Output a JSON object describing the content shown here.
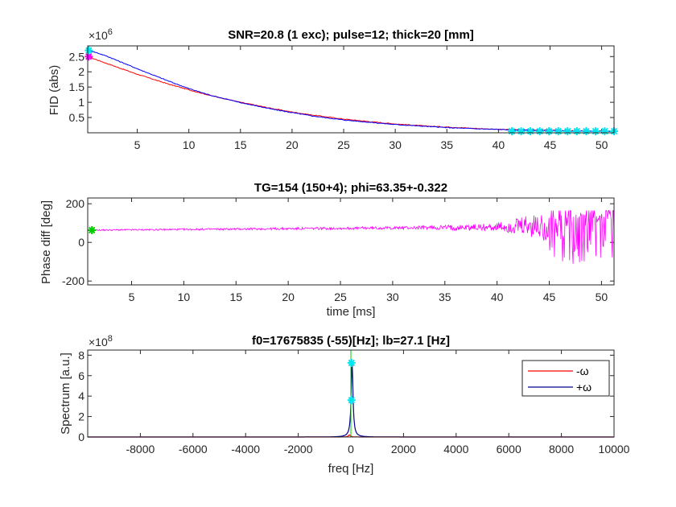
{
  "chart_data": [
    {
      "type": "line",
      "title": "SNR=20.8 (1 exc); pulse=12; thick=20 [mm]",
      "xlabel": "",
      "ylabel": "FID (abs)",
      "exponent_label": "×10",
      "exponent_power": "6",
      "xlim": [
        0.2,
        51.2
      ],
      "ylim": [
        0,
        2.85
      ],
      "xticks": [
        5,
        10,
        15,
        20,
        25,
        30,
        35,
        40,
        45,
        50
      ],
      "xtick_labels": [
        "5",
        "10",
        "15",
        "20",
        "25",
        "30",
        "35",
        "40",
        "45",
        "50"
      ],
      "yticks": [
        0.5,
        1,
        1.5,
        2,
        2.5
      ],
      "ytick_labels": [
        "0.5",
        "1",
        "1.5",
        "2",
        "2.5"
      ],
      "grid": false,
      "series": [
        {
          "color": "#ff0000",
          "x": [
            0.2,
            2,
            5,
            8,
            10,
            12,
            15,
            18,
            20,
            22,
            25,
            28,
            30,
            33,
            35,
            38,
            40,
            42,
            45,
            48,
            51.2
          ],
          "y": [
            2.5,
            2.28,
            1.92,
            1.6,
            1.41,
            1.23,
            1.0,
            0.8,
            0.68,
            0.58,
            0.45,
            0.35,
            0.29,
            0.22,
            0.19,
            0.14,
            0.11,
            0.1,
            0.08,
            0.06,
            0.05
          ]
        },
        {
          "color": "#0000ff",
          "x": [
            0.2,
            2,
            5,
            8,
            10,
            12,
            15,
            18,
            20,
            22,
            25,
            28,
            30,
            33,
            35,
            38,
            40,
            42,
            45,
            48,
            51.2
          ],
          "y": [
            2.72,
            2.52,
            2.1,
            1.7,
            1.45,
            1.24,
            0.99,
            0.78,
            0.66,
            0.55,
            0.42,
            0.33,
            0.27,
            0.21,
            0.17,
            0.13,
            0.11,
            0.09,
            0.07,
            0.06,
            0.05
          ]
        }
      ],
      "markers": [
        {
          "color": "#ff00ff",
          "x": 0.3,
          "y": 2.5
        },
        {
          "color": "#00e5ee",
          "x": 0.3,
          "y": 2.7
        }
      ],
      "marker_band": {
        "color": "#00e5ee",
        "x_from": 41.3,
        "x_to": 51.2,
        "y": 0.05,
        "spacing": 0.9
      }
    },
    {
      "type": "line",
      "title": "TG=154 (150+4); phi=63.35+-0.322",
      "xlabel": "time [ms]",
      "ylabel": "Phase diff [deg]",
      "xlim": [
        0.8,
        51.2
      ],
      "ylim": [
        -220,
        230
      ],
      "xticks": [
        5,
        10,
        15,
        20,
        25,
        30,
        35,
        40,
        45,
        50
      ],
      "xtick_labels": [
        "5",
        "10",
        "15",
        "20",
        "25",
        "30",
        "35",
        "40",
        "45",
        "50"
      ],
      "yticks": [
        -200,
        0,
        200
      ],
      "ytick_labels": [
        "-200",
        "0",
        "200"
      ],
      "grid": false,
      "phase_series": {
        "color": "#ff00ff",
        "start": 0.8,
        "end": 51.2,
        "base": 63.35,
        "slope": 0.4
      },
      "markers": [
        {
          "color": "#00cc00",
          "x": 1.2,
          "y": 63.35
        }
      ]
    },
    {
      "type": "line",
      "title": "f0=17675835 (-55)[Hz]; lb=27.1 [Hz]",
      "xlabel": "freq [Hz]",
      "ylabel": "Spectrum [a.u.]",
      "exponent_label": "×10",
      "exponent_power": "8",
      "xlim": [
        -10000,
        10000
      ],
      "ylim": [
        0,
        8.5
      ],
      "xticks": [
        -8000,
        -6000,
        -4000,
        -2000,
        0,
        2000,
        4000,
        6000,
        8000,
        10000
      ],
      "xtick_labels": [
        "-8000",
        "-6000",
        "-4000",
        "-2000",
        "0",
        "2000",
        "4000",
        "6000",
        "8000",
        "10000"
      ],
      "yticks": [
        0,
        2,
        4,
        6,
        8
      ],
      "ytick_labels": [
        "0",
        "2",
        "4",
        "6",
        "8"
      ],
      "grid": false,
      "legend": {
        "placement": "top-right",
        "entries": [
          {
            "label": "-ω",
            "color": "#ff0000"
          },
          {
            "label": "+ω",
            "color": "#00008b"
          }
        ]
      },
      "spectrum_series": [
        {
          "color": "#ff0000",
          "center": -55,
          "peak": 0.2,
          "width": 50
        },
        {
          "color": "#00008b",
          "center": 45,
          "peak": 7.25,
          "width": 42
        }
      ],
      "vline": {
        "color": "#00cc00",
        "x": 0
      },
      "markers": [
        {
          "color": "#00e5ee",
          "x": 25,
          "y": 7.25
        },
        {
          "color": "#00e5ee",
          "x": 25,
          "y": 3.6
        }
      ]
    }
  ]
}
